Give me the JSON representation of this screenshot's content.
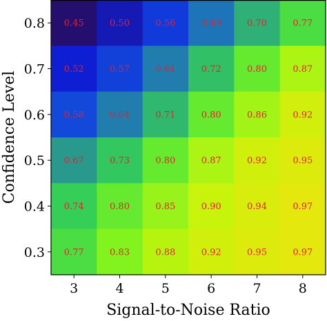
{
  "chart_data": {
    "type": "heatmap",
    "title": "",
    "xlabel": "Signal-to-Noise Ratio",
    "ylabel": "Confidence Level",
    "x": [
      3,
      4,
      5,
      6,
      7,
      8
    ],
    "y": [
      0.8,
      0.7,
      0.6,
      0.5,
      0.4,
      0.3
    ],
    "x_tick_labels": [
      "3",
      "4",
      "5",
      "6",
      "7",
      "8"
    ],
    "y_tick_labels": [
      "0.8",
      "0.7",
      "0.6",
      "0.5",
      "0.4",
      "0.3"
    ],
    "values": [
      [
        0.45,
        0.5,
        0.56,
        0.63,
        0.7,
        0.77
      ],
      [
        0.52,
        0.57,
        0.64,
        0.72,
        0.8,
        0.87
      ],
      [
        0.58,
        0.64,
        0.71,
        0.8,
        0.86,
        0.92
      ],
      [
        0.67,
        0.73,
        0.8,
        0.87,
        0.92,
        0.95
      ],
      [
        0.74,
        0.8,
        0.85,
        0.9,
        0.94,
        0.97
      ],
      [
        0.77,
        0.83,
        0.88,
        0.92,
        0.95,
        0.97
      ]
    ],
    "value_labels": [
      [
        "0.45",
        "0.50",
        "0.56",
        "0.63",
        "0.70",
        "0.77"
      ],
      [
        "0.52",
        "0.57",
        "0.64",
        "0.72",
        "0.80",
        "0.87"
      ],
      [
        "0.58",
        "0.64",
        "0.71",
        "0.80",
        "0.86",
        "0.92"
      ],
      [
        "0.67",
        "0.73",
        "0.80",
        "0.87",
        "0.92",
        "0.95"
      ],
      [
        "0.74",
        "0.80",
        "0.85",
        "0.90",
        "0.94",
        "0.97"
      ],
      [
        "0.77",
        "0.83",
        "0.88",
        "0.92",
        "0.95",
        "0.97"
      ]
    ],
    "colorscale": [
      "#240f6e",
      "#0d1fd8",
      "#1557dc",
      "#2a9c8a",
      "#36d452",
      "#7af321",
      "#c6f40b",
      "#e4e80d"
    ],
    "label_color": "#e8202a",
    "legend": "none",
    "grid": false
  }
}
